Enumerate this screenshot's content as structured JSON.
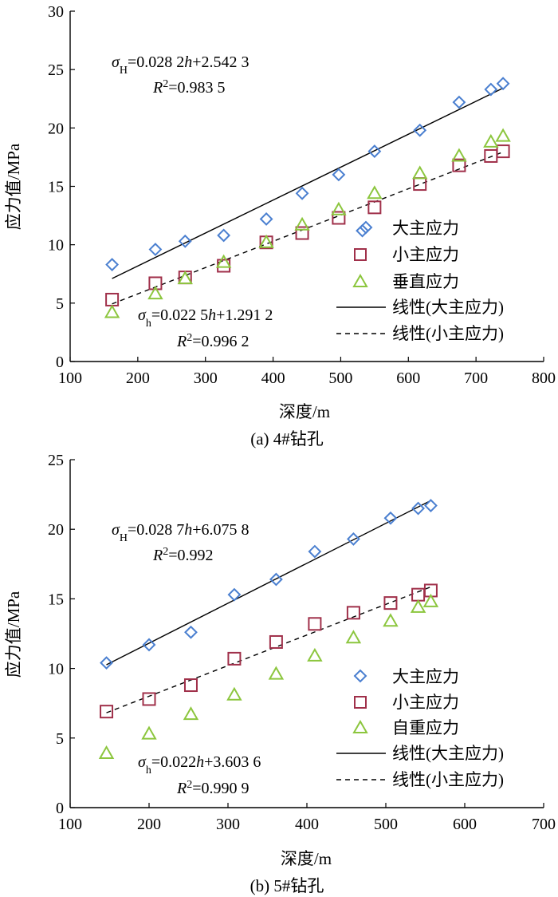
{
  "charts": [
    {
      "id": "a",
      "caption": "(a) 4#钻孔",
      "equations": {
        "major": {
          "symbol": "σ",
          "sub": "H",
          "rhs_pre": "=0.028 2",
          "var": "h",
          "rhs_post": "+2.542 3",
          "r2_symbol": "R",
          "r2_sup": "2",
          "r2_value": "=0.983 5"
        },
        "minor": {
          "symbol": "σ",
          "sub": "h",
          "rhs_pre": "=0.022 5",
          "var": "h",
          "rhs_post": "+1.291 2",
          "r2_symbol": "R",
          "r2_sup": "2",
          "r2_value": "=0.996 2"
        }
      },
      "legend": [
        "大主应力",
        "小主应力",
        "垂直应力",
        "线性(大主应力)",
        "线性(小主应力)"
      ]
    },
    {
      "id": "b",
      "caption": "(b) 5#钻孔",
      "equations": {
        "major": {
          "symbol": "σ",
          "sub": "H",
          "rhs_pre": "=0.028 7",
          "var": "h",
          "rhs_post": "+6.075 8",
          "r2_symbol": "R",
          "r2_sup": "2",
          "r2_value": "=0.992"
        },
        "minor": {
          "symbol": "σ",
          "sub": "h",
          "rhs_pre": "=0.022",
          "var": "h",
          "rhs_post": "+3.603 6",
          "r2_symbol": "R",
          "r2_sup": "2",
          "r2_value": "=0.990 9"
        }
      },
      "legend": [
        "大主应力",
        "小主应力",
        "自重应力",
        "线性(大主应力)",
        "线性(小主应力)"
      ]
    }
  ],
  "colors": {
    "major": "#4a7fd0",
    "minor": "#a0304a",
    "vertical": "#8cc63e",
    "fit": "#000000"
  },
  "chart_data": [
    {
      "type": "scatter",
      "xlabel": "深度/m",
      "ylabel": "应力值/MPa",
      "xlim": [
        100,
        800
      ],
      "ylim": [
        0,
        30
      ],
      "xticks": [
        100,
        200,
        300,
        400,
        500,
        600,
        700,
        800
      ],
      "yticks": [
        0,
        5,
        10,
        15,
        20,
        25,
        30
      ],
      "series": [
        {
          "name": "大主应力",
          "marker": "diamond",
          "x": [
            162,
            226,
            270,
            327,
            390,
            443,
            497,
            532,
            550,
            617,
            675,
            722,
            740
          ],
          "y": [
            8.3,
            9.6,
            10.3,
            10.8,
            12.2,
            14.4,
            16.0,
            11.2,
            18.0,
            19.8,
            22.2,
            23.3,
            23.8
          ]
        },
        {
          "name": "小主应力",
          "marker": "square",
          "x": [
            162,
            226,
            270,
            327,
            390,
            443,
            497,
            550,
            617,
            675,
            722,
            740
          ],
          "y": [
            5.3,
            6.7,
            7.2,
            8.2,
            10.2,
            11.0,
            12.3,
            13.2,
            15.2,
            16.8,
            17.6,
            18.0
          ]
        },
        {
          "name": "垂直应力",
          "marker": "triangle",
          "x": [
            162,
            226,
            270,
            327,
            390,
            443,
            497,
            550,
            617,
            675,
            722,
            740
          ],
          "y": [
            4.2,
            5.8,
            7.1,
            8.5,
            10.2,
            11.7,
            13.0,
            14.4,
            16.1,
            17.6,
            18.8,
            19.3
          ]
        },
        {
          "name": "线性(大主应力)",
          "style": "solid",
          "slope": 0.0282,
          "intercept": 2.5423,
          "range": [
            162,
            740
          ]
        },
        {
          "name": "线性(小主应力)",
          "style": "dashed",
          "slope": 0.0225,
          "intercept": 1.2912,
          "range": [
            162,
            740
          ]
        }
      ]
    },
    {
      "type": "scatter",
      "xlabel": "深度/m",
      "ylabel": "应力值/MPa",
      "xlim": [
        100,
        700
      ],
      "ylim": [
        0,
        25
      ],
      "xticks": [
        100,
        200,
        300,
        400,
        500,
        600,
        700
      ],
      "yticks": [
        0,
        5,
        10,
        15,
        20,
        25
      ],
      "series": [
        {
          "name": "大主应力",
          "marker": "diamond",
          "x": [
            146,
            200,
            253,
            308,
            361,
            410,
            459,
            506,
            541,
            557
          ],
          "y": [
            10.4,
            11.7,
            12.6,
            15.3,
            16.4,
            18.4,
            19.3,
            20.8,
            21.5,
            21.7
          ]
        },
        {
          "name": "小主应力",
          "marker": "square",
          "x": [
            146,
            200,
            253,
            308,
            361,
            410,
            459,
            506,
            541,
            557
          ],
          "y": [
            6.9,
            7.8,
            8.8,
            10.7,
            11.9,
            13.2,
            14.0,
            14.7,
            15.3,
            15.6
          ]
        },
        {
          "name": "自重应力",
          "marker": "triangle",
          "x": [
            146,
            200,
            253,
            308,
            361,
            410,
            459,
            506,
            541,
            557
          ],
          "y": [
            3.9,
            5.3,
            6.7,
            8.1,
            9.6,
            10.9,
            12.2,
            13.4,
            14.4,
            14.8
          ]
        },
        {
          "name": "线性(大主应力)",
          "style": "solid",
          "slope": 0.0287,
          "intercept": 6.0758,
          "range": [
            146,
            557
          ]
        },
        {
          "name": "线性(小主应力)",
          "style": "dashed",
          "slope": 0.022,
          "intercept": 3.6036,
          "range": [
            146,
            557
          ]
        }
      ]
    }
  ]
}
